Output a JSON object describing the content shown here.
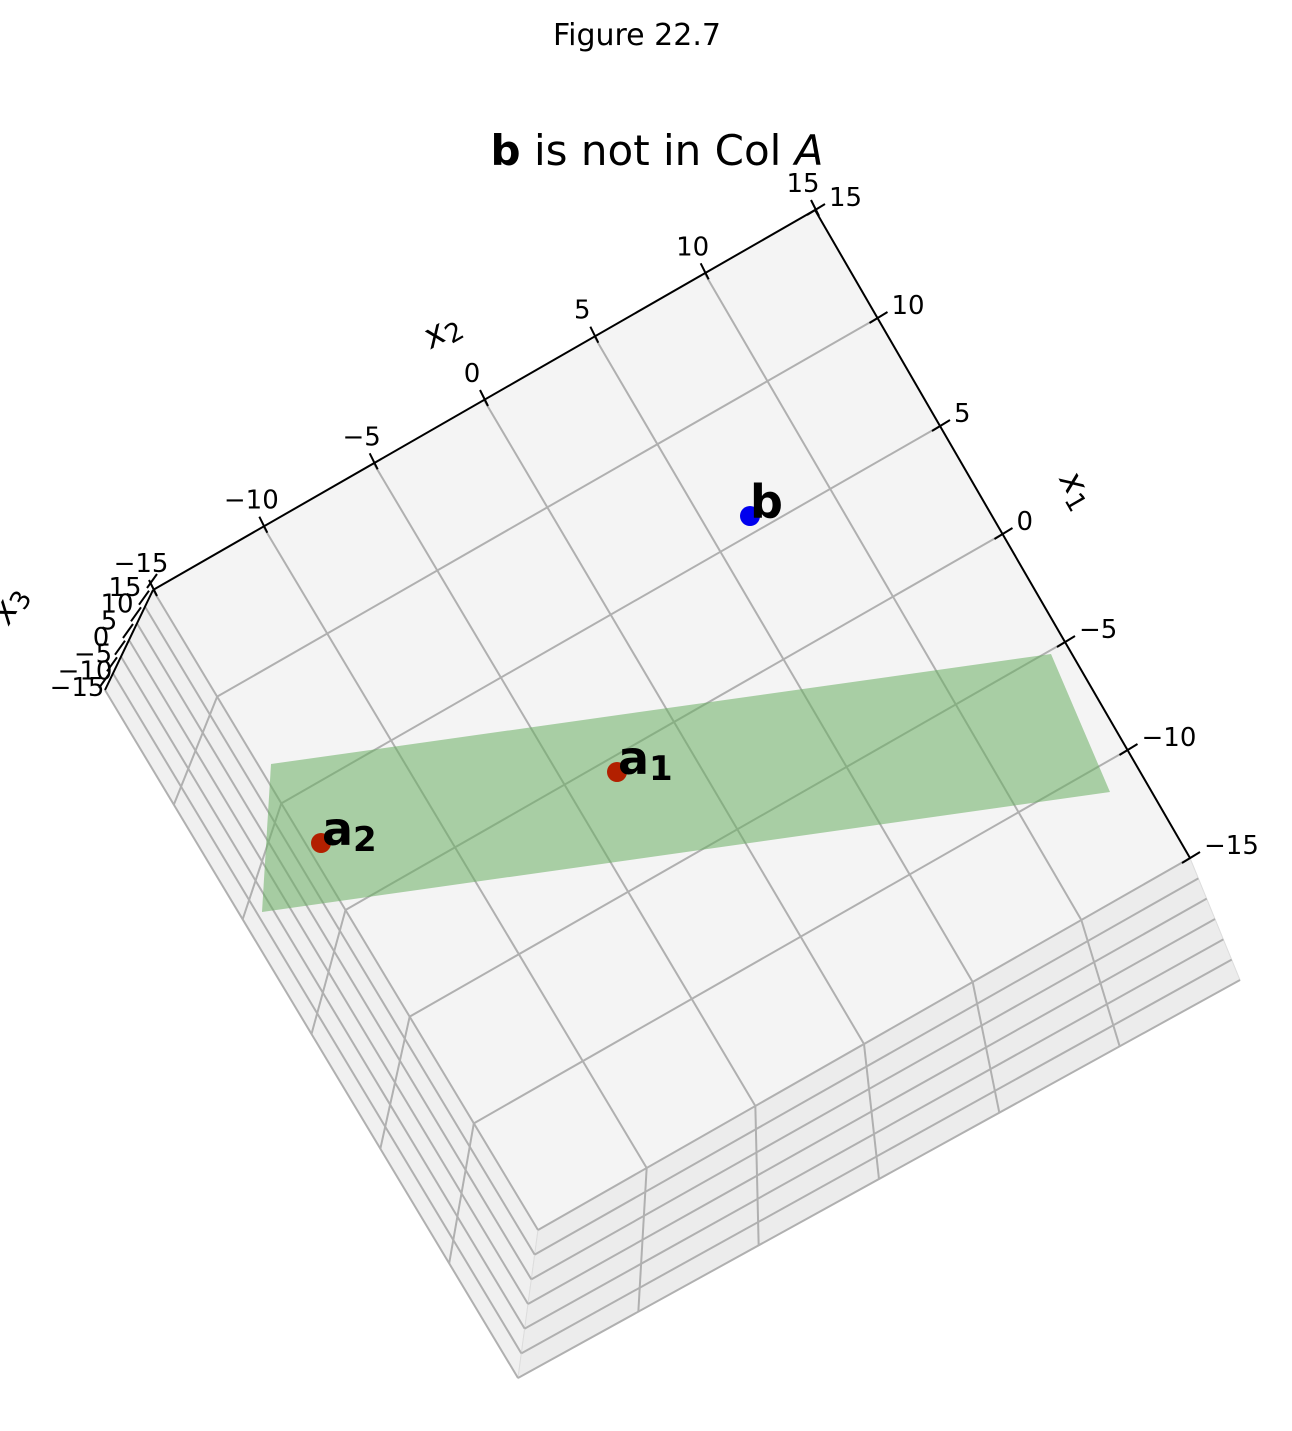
{
  "figure_title": "Figure 22.7",
  "chart_data": {
    "type": "scatter3d",
    "title": {
      "bold_part": "b",
      "middle_part": " is not in Col ",
      "italic_part": "A"
    },
    "axes": {
      "x1": {
        "label": "x",
        "sub": "1",
        "ticks": [
          "−15",
          "−10",
          "−5",
          "0",
          "5",
          "10",
          "15"
        ]
      },
      "x2": {
        "label": "x",
        "sub": "2",
        "ticks": [
          "−15",
          "−10",
          "−5",
          "0",
          "5",
          "10",
          "15"
        ]
      },
      "x3": {
        "label": "x",
        "sub": "3",
        "ticks": [
          "−15",
          "−10",
          "−5",
          "0",
          "5",
          "10",
          "15"
        ]
      }
    },
    "points": [
      {
        "name": "b",
        "label": "b",
        "sub": "",
        "color": "#0000ee"
      },
      {
        "name": "a1",
        "label": "a",
        "sub": "1",
        "color": "#b22000"
      },
      {
        "name": "a2",
        "label": "a",
        "sub": "2",
        "color": "#b22000"
      }
    ],
    "plane": {
      "color": "#6aaf63",
      "opacity": 0.55
    },
    "grid": true
  }
}
